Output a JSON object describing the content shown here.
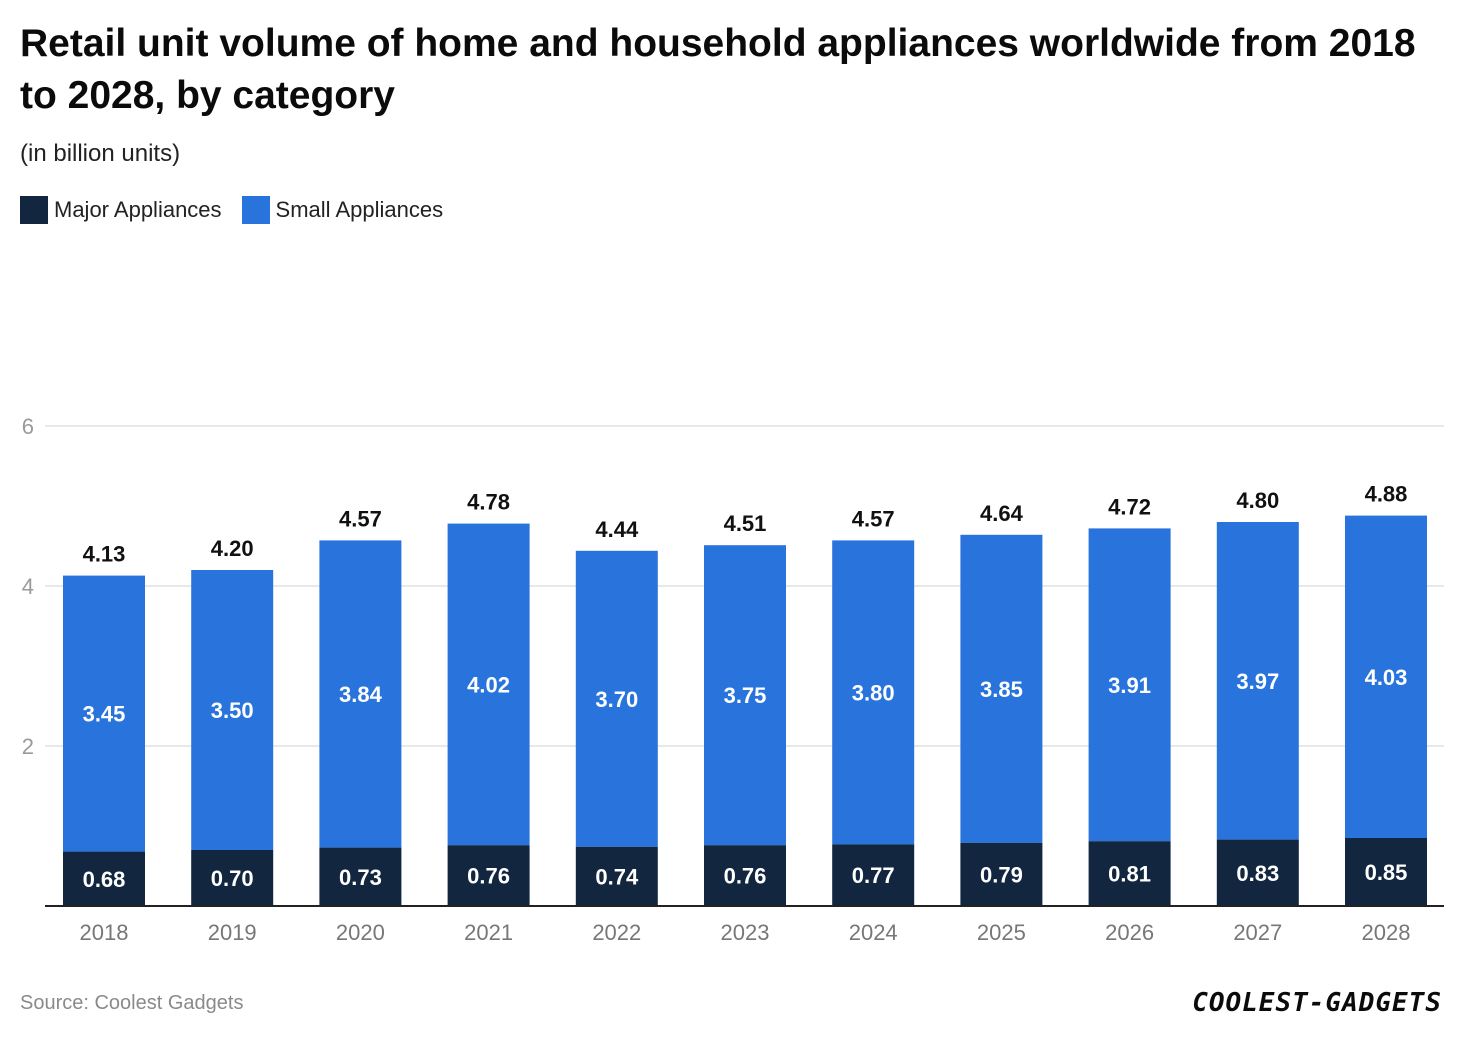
{
  "header": {
    "title": "Retail unit volume of home and household appliances worldwide from 2018 to 2028, by category",
    "subtitle": "(in billion units)"
  },
  "footer": {
    "source": "Source: Coolest Gadgets",
    "logo": "COOLEST-GADGETS"
  },
  "colors": {
    "major": "#13263f",
    "small": "#2874dc",
    "grid": "#e1e1e1",
    "axis": "#222222",
    "tick": "#777777"
  },
  "chart_data": {
    "type": "bar",
    "stacked": true,
    "title": "Retail unit volume of home and household appliances worldwide from 2018 to 2028, by category",
    "ylabel": "(in billion units)",
    "xlabel": "",
    "ylim": [
      0,
      6
    ],
    "yticks": [
      2,
      4,
      6
    ],
    "grid": true,
    "legend_position": "top-left",
    "categories": [
      "2018",
      "2019",
      "2020",
      "2021",
      "2022",
      "2023",
      "2024",
      "2025",
      "2026",
      "2027",
      "2028"
    ],
    "series": [
      {
        "name": "Major Appliances",
        "color_key": "major",
        "values": [
          0.68,
          0.7,
          0.73,
          0.76,
          0.74,
          0.76,
          0.77,
          0.79,
          0.81,
          0.83,
          0.85
        ]
      },
      {
        "name": "Small Appliances",
        "color_key": "small",
        "values": [
          3.45,
          3.5,
          3.84,
          4.02,
          3.7,
          3.75,
          3.8,
          3.85,
          3.91,
          3.97,
          4.03
        ]
      }
    ],
    "totals": [
      4.13,
      4.2,
      4.57,
      4.78,
      4.44,
      4.51,
      4.57,
      4.64,
      4.72,
      4.8,
      4.88
    ]
  }
}
